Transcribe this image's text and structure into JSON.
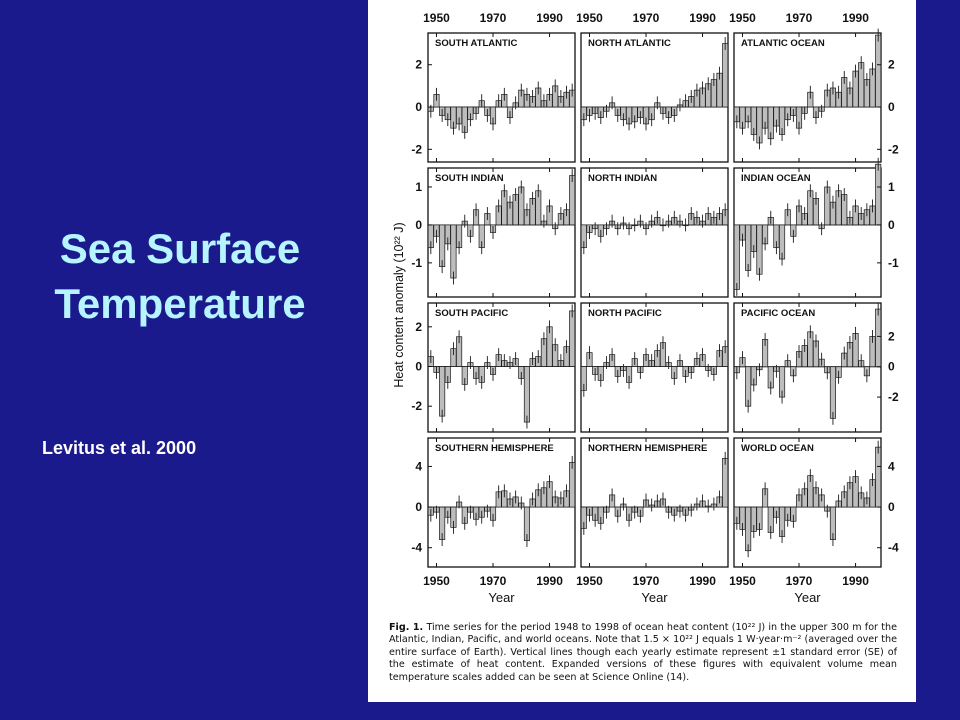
{
  "slide": {
    "title_line1": "Sea Surface",
    "title_line2": "Temperature",
    "citation": "Levitus et al. 2000"
  },
  "colors": {
    "background": "#1a1a8c",
    "title": "#b6f4ff",
    "citation": "#ffffff",
    "figure_bg": "#ffffff",
    "bars": "#1a1a1a"
  },
  "figure": {
    "ylabel": "Heat content anomaly (10²² J)",
    "xlabel": "Year",
    "caption_label": "Fig. 1.",
    "caption_text": "Time series for the period 1948 to 1998 of ocean heat content (10²² J) in the upper 300 m for the Atlantic, Indian, Pacific, and world oceans. Note that 1.5 × 10²² J equals 1 W·year·m⁻² (averaged over the entire surface of Earth). Vertical lines though each yearly estimate represent ±1 standard error (SE) of the estimate of heat content. Expanded versions of these figures with equivalent volume mean temperature scales added can be seen at Science Online (14)."
  },
  "chart_data": [
    {
      "type": "bar",
      "title": "SOUTH ATLANTIC",
      "x_ticks": [
        1950,
        1970,
        1990
      ],
      "xlim": [
        1947,
        1999
      ],
      "ylim": [
        -2.6,
        3.5
      ],
      "y_ticks": [
        -2,
        0,
        2
      ],
      "x": [
        1948,
        1950,
        1952,
        1954,
        1956,
        1958,
        1960,
        1962,
        1964,
        1966,
        1968,
        1970,
        1972,
        1974,
        1976,
        1978,
        1980,
        1982,
        1984,
        1986,
        1988,
        1990,
        1992,
        1994,
        1996,
        1998
      ],
      "values": [
        -0.2,
        0.6,
        -0.4,
        -0.6,
        -1.0,
        -0.8,
        -1.2,
        -0.6,
        -0.3,
        0.3,
        -0.4,
        -0.8,
        0.3,
        0.6,
        -0.5,
        0.2,
        0.8,
        0.6,
        0.5,
        0.9,
        0.3,
        0.6,
        1.0,
        0.5,
        0.7,
        0.8
      ]
    },
    {
      "type": "bar",
      "title": "NORTH ATLANTIC",
      "x_ticks": [
        1950,
        1970,
        1990
      ],
      "xlim": [
        1947,
        1999
      ],
      "ylim": [
        -2.6,
        3.5
      ],
      "y_ticks": [],
      "x": [
        1948,
        1950,
        1952,
        1954,
        1956,
        1958,
        1960,
        1962,
        1964,
        1966,
        1968,
        1970,
        1972,
        1974,
        1976,
        1978,
        1980,
        1982,
        1984,
        1986,
        1988,
        1990,
        1992,
        1994,
        1996,
        1998
      ],
      "values": [
        -0.6,
        -0.4,
        -0.3,
        -0.5,
        -0.2,
        0.2,
        -0.4,
        -0.6,
        -0.8,
        -0.7,
        -0.5,
        -0.8,
        -0.6,
        0.2,
        -0.3,
        -0.5,
        -0.4,
        0.1,
        0.3,
        0.5,
        0.8,
        0.9,
        1.1,
        1.3,
        1.6,
        3.0
      ]
    },
    {
      "type": "bar",
      "title": "ATLANTIC OCEAN",
      "x_ticks": [
        1950,
        1970,
        1990
      ],
      "xlim": [
        1947,
        1999
      ],
      "ylim": [
        -2.6,
        3.5
      ],
      "y_ticks": [
        -2,
        0,
        2
      ],
      "x": [
        1948,
        1950,
        1952,
        1954,
        1956,
        1958,
        1960,
        1962,
        1964,
        1966,
        1968,
        1970,
        1972,
        1974,
        1976,
        1978,
        1980,
        1982,
        1984,
        1986,
        1988,
        1990,
        1992,
        1994,
        1996,
        1998
      ],
      "values": [
        -0.7,
        -1.0,
        -0.7,
        -1.3,
        -1.7,
        -1.0,
        -1.5,
        -0.9,
        -1.3,
        -0.6,
        -0.4,
        -1.0,
        -0.3,
        0.7,
        -0.5,
        -0.2,
        0.8,
        0.9,
        0.7,
        1.4,
        0.9,
        1.7,
        2.1,
        1.3,
        1.8,
        3.4
      ]
    },
    {
      "type": "bar",
      "title": "SOUTH INDIAN",
      "x_ticks": [
        1950,
        1970,
        1990
      ],
      "xlim": [
        1947,
        1999
      ],
      "ylim": [
        -1.9,
        1.5
      ],
      "y_ticks": [
        -1,
        0,
        1
      ],
      "x": [
        1948,
        1950,
        1952,
        1954,
        1956,
        1958,
        1960,
        1962,
        1964,
        1966,
        1968,
        1970,
        1972,
        1974,
        1976,
        1978,
        1980,
        1982,
        1984,
        1986,
        1988,
        1990,
        1992,
        1994,
        1996,
        1998
      ],
      "values": [
        -0.6,
        -0.3,
        -1.1,
        -0.5,
        -1.4,
        -0.6,
        0.1,
        -0.3,
        0.4,
        -0.6,
        0.3,
        -0.2,
        0.5,
        0.9,
        0.6,
        0.8,
        1.0,
        0.4,
        0.7,
        0.9,
        0.1,
        0.5,
        -0.1,
        0.3,
        0.4,
        1.3
      ]
    },
    {
      "type": "bar",
      "title": "NORTH INDIAN",
      "x_ticks": [
        1950,
        1970,
        1990
      ],
      "xlim": [
        1947,
        1999
      ],
      "ylim": [
        -1.9,
        1.5
      ],
      "y_ticks": [],
      "x": [
        1948,
        1950,
        1952,
        1954,
        1956,
        1958,
        1960,
        1962,
        1964,
        1966,
        1968,
        1970,
        1972,
        1974,
        1976,
        1978,
        1980,
        1982,
        1984,
        1986,
        1988,
        1990,
        1992,
        1994,
        1996,
        1998
      ],
      "values": [
        -0.6,
        -0.2,
        -0.1,
        -0.3,
        -0.1,
        0.1,
        -0.1,
        0.05,
        -0.1,
        0.0,
        0.1,
        -0.1,
        0.1,
        0.2,
        0.0,
        0.1,
        0.2,
        0.1,
        0.0,
        0.3,
        0.2,
        0.1,
        0.3,
        0.2,
        0.3,
        0.4
      ]
    },
    {
      "type": "bar",
      "title": "INDIAN OCEAN",
      "x_ticks": [
        1950,
        1970,
        1990
      ],
      "xlim": [
        1947,
        1999
      ],
      "ylim": [
        -1.9,
        1.5
      ],
      "y_ticks": [
        -1,
        0,
        1
      ],
      "x": [
        1948,
        1950,
        1952,
        1954,
        1956,
        1958,
        1960,
        1962,
        1964,
        1966,
        1968,
        1970,
        1972,
        1974,
        1976,
        1978,
        1980,
        1982,
        1984,
        1986,
        1988,
        1990,
        1992,
        1994,
        1996,
        1998
      ],
      "values": [
        -1.7,
        -0.4,
        -1.2,
        -0.7,
        -1.3,
        -0.5,
        0.2,
        -0.6,
        -0.9,
        0.4,
        -0.3,
        0.5,
        0.3,
        0.9,
        0.7,
        -0.1,
        1.0,
        0.6,
        0.9,
        0.8,
        0.2,
        0.5,
        0.3,
        0.4,
        0.5,
        1.6
      ]
    },
    {
      "type": "bar",
      "title": "SOUTH PACIFIC",
      "x_ticks": [
        1950,
        1970,
        1990
      ],
      "xlim": [
        1947,
        1999
      ],
      "ylim": [
        -3.3,
        3.2
      ],
      "y_ticks": [
        -2,
        0,
        2
      ],
      "x": [
        1948,
        1950,
        1952,
        1954,
        1956,
        1958,
        1960,
        1962,
        1964,
        1966,
        1968,
        1970,
        1972,
        1974,
        1976,
        1978,
        1980,
        1982,
        1984,
        1986,
        1988,
        1990,
        1992,
        1994,
        1996,
        1998
      ],
      "values": [
        0.5,
        -0.3,
        -2.5,
        -0.8,
        0.9,
        1.5,
        -0.9,
        0.2,
        -0.6,
        -0.8,
        0.2,
        -0.4,
        0.6,
        0.3,
        0.2,
        0.4,
        -0.6,
        -2.8,
        0.4,
        0.5,
        1.4,
        2.0,
        1.1,
        0.3,
        1.0,
        2.8
      ]
    },
    {
      "type": "bar",
      "title": "NORTH PACIFIC",
      "x_ticks": [
        1950,
        1970,
        1990
      ],
      "xlim": [
        1947,
        1999
      ],
      "ylim": [
        -3.3,
        3.2
      ],
      "y_ticks": [],
      "x": [
        1948,
        1950,
        1952,
        1954,
        1956,
        1958,
        1960,
        1962,
        1964,
        1966,
        1968,
        1970,
        1972,
        1974,
        1976,
        1978,
        1980,
        1982,
        1984,
        1986,
        1988,
        1990,
        1992,
        1994,
        1996,
        1998
      ],
      "values": [
        -1.2,
        0.7,
        -0.4,
        -0.7,
        0.2,
        0.6,
        -0.5,
        -0.2,
        -0.8,
        0.4,
        -0.3,
        0.6,
        0.3,
        0.8,
        1.2,
        0.2,
        -0.6,
        0.3,
        -0.5,
        -0.3,
        0.4,
        0.6,
        -0.2,
        -0.4,
        0.8,
        1.0
      ]
    },
    {
      "type": "bar",
      "title": "PACIFIC OCEAN",
      "x_ticks": [
        1950,
        1970,
        1990
      ],
      "xlim": [
        1947,
        1999
      ],
      "ylim": [
        -4.3,
        4.2
      ],
      "y_ticks": [
        -2,
        0,
        2
      ],
      "x": [
        1948,
        1950,
        1952,
        1954,
        1956,
        1958,
        1960,
        1962,
        1964,
        1966,
        1968,
        1970,
        1972,
        1974,
        1976,
        1978,
        1980,
        1982,
        1984,
        1986,
        1988,
        1990,
        1992,
        1994,
        1996,
        1998
      ],
      "values": [
        -0.4,
        0.6,
        -2.6,
        -1.2,
        -0.2,
        1.8,
        -1.4,
        -0.3,
        -2.0,
        0.4,
        -0.6,
        1.0,
        1.4,
        2.3,
        1.7,
        0.5,
        -0.4,
        -3.4,
        -0.7,
        0.9,
        1.6,
        2.2,
        0.4,
        -0.6,
        2.0,
        3.8
      ]
    },
    {
      "type": "bar",
      "title": "SOUTHERN HEMISPHERE",
      "x_ticks": [
        1950,
        1970,
        1990
      ],
      "xlim": [
        1947,
        1999
      ],
      "ylim": [
        -5.9,
        6.8
      ],
      "y_ticks": [
        -4,
        0,
        4
      ],
      "x": [
        1948,
        1950,
        1952,
        1954,
        1956,
        1958,
        1960,
        1962,
        1964,
        1966,
        1968,
        1970,
        1972,
        1974,
        1976,
        1978,
        1980,
        1982,
        1984,
        1986,
        1988,
        1990,
        1992,
        1994,
        1996,
        1998
      ],
      "values": [
        -0.8,
        -0.5,
        -3.2,
        -1.0,
        -2.0,
        0.5,
        -1.6,
        -0.5,
        -1.2,
        -1.0,
        -0.4,
        -1.3,
        1.5,
        1.6,
        0.8,
        1.0,
        0.4,
        -3.3,
        0.8,
        1.7,
        1.9,
        2.5,
        1.0,
        0.9,
        1.6,
        4.4
      ]
    },
    {
      "type": "bar",
      "title": "NORTHERN HEMISPHERE",
      "x_ticks": [
        1950,
        1970,
        1990
      ],
      "xlim": [
        1947,
        1999
      ],
      "ylim": [
        -5.9,
        6.8
      ],
      "y_ticks": [],
      "x": [
        1948,
        1950,
        1952,
        1954,
        1956,
        1958,
        1960,
        1962,
        1964,
        1966,
        1968,
        1970,
        1972,
        1974,
        1976,
        1978,
        1980,
        1982,
        1984,
        1986,
        1988,
        1990,
        1992,
        1994,
        1996,
        1998
      ],
      "values": [
        -2.1,
        -0.8,
        -1.3,
        -1.6,
        -0.5,
        1.2,
        -0.9,
        0.3,
        -1.3,
        -0.5,
        -0.9,
        0.7,
        0.2,
        0.6,
        0.8,
        -0.5,
        -0.8,
        -0.4,
        -0.8,
        -0.3,
        0.3,
        0.6,
        0.1,
        0.3,
        1.0,
        4.8
      ]
    },
    {
      "type": "bar",
      "title": "WORLD OCEAN",
      "x_ticks": [
        1950,
        1970,
        1990
      ],
      "xlim": [
        1947,
        1999
      ],
      "ylim": [
        -5.9,
        6.8
      ],
      "y_ticks": [
        -4,
        0,
        4
      ],
      "x": [
        1948,
        1950,
        1952,
        1954,
        1956,
        1958,
        1960,
        1962,
        1964,
        1966,
        1968,
        1970,
        1972,
        1974,
        1976,
        1978,
        1980,
        1982,
        1984,
        1986,
        1988,
        1990,
        1992,
        1994,
        1996,
        1998
      ],
      "values": [
        -1.6,
        -2.2,
        -4.3,
        -2.4,
        -2.2,
        1.8,
        -2.5,
        -1.0,
        -2.9,
        -1.3,
        -1.4,
        1.2,
        1.8,
        3.1,
        1.9,
        1.2,
        -0.4,
        -3.2,
        0.6,
        1.5,
        2.4,
        3.0,
        1.4,
        0.9,
        2.7,
        5.9
      ]
    }
  ]
}
